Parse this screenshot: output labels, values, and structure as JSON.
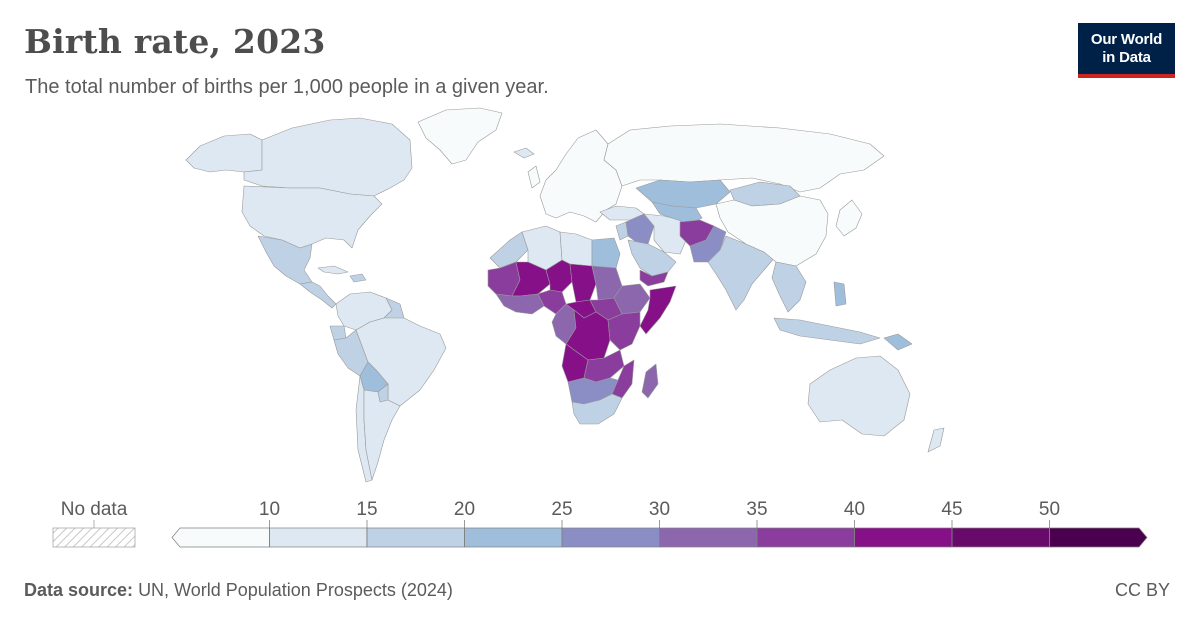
{
  "header": {
    "title": "Birth rate, 2023",
    "subtitle": "The total number of births per 1,000 people in a given year."
  },
  "logo": {
    "line1": "Our World",
    "line2": "in Data"
  },
  "legend": {
    "no_data_label": "No data",
    "ticks": [
      "10",
      "15",
      "20",
      "25",
      "30",
      "35",
      "40",
      "45",
      "50"
    ],
    "bins": [
      {
        "range": "<10",
        "color": "#f7fbfc"
      },
      {
        "range": "10-15",
        "color": "#dde8f2"
      },
      {
        "range": "15-20",
        "color": "#bfd1e5"
      },
      {
        "range": "20-25",
        "color": "#9fbedc"
      },
      {
        "range": "25-30",
        "color": "#8b8ec5"
      },
      {
        "range": "30-35",
        "color": "#8c67ae"
      },
      {
        "range": "35-40",
        "color": "#8a3d9c"
      },
      {
        "range": "40-45",
        "color": "#861088"
      },
      {
        "range": "45-50",
        "color": "#680a6a"
      },
      {
        "range": ">50",
        "color": "#4a004e"
      }
    ]
  },
  "source": {
    "label": "Data source:",
    "text": "UN, World Population Prospects (2024)"
  },
  "license": "CC BY",
  "map_regions": [
    {
      "name": "greenland",
      "color": "#f7fbfc"
    },
    {
      "name": "canada",
      "color": "#dde8f2"
    },
    {
      "name": "alaska",
      "color": "#dde8f2"
    },
    {
      "name": "united-states",
      "color": "#dde8f2"
    },
    {
      "name": "mexico",
      "color": "#bfd1e5"
    },
    {
      "name": "central-america",
      "color": "#bfd1e5"
    },
    {
      "name": "cuba",
      "color": "#dde8f2"
    },
    {
      "name": "caribbean-islands",
      "color": "#bfd1e5"
    },
    {
      "name": "colombia-venezuela",
      "color": "#dde8f2"
    },
    {
      "name": "guianas",
      "color": "#bfd1e5"
    },
    {
      "name": "ecuador",
      "color": "#bfd1e5"
    },
    {
      "name": "peru",
      "color": "#bfd1e5"
    },
    {
      "name": "brazil",
      "color": "#dde8f2"
    },
    {
      "name": "bolivia",
      "color": "#9fbedc"
    },
    {
      "name": "paraguay",
      "color": "#bfd1e5"
    },
    {
      "name": "chile",
      "color": "#dde8f2"
    },
    {
      "name": "argentina",
      "color": "#dde8f2"
    },
    {
      "name": "iceland",
      "color": "#dde8f2"
    },
    {
      "name": "europe",
      "color": "#f7fbfc"
    },
    {
      "name": "uk",
      "color": "#f7fbfc"
    },
    {
      "name": "russia",
      "color": "#f7fbfc"
    },
    {
      "name": "turkey",
      "color": "#dde8f2"
    },
    {
      "name": "middle-east",
      "color": "#bfd1e5"
    },
    {
      "name": "iraq-syria",
      "color": "#8b8ec5"
    },
    {
      "name": "saudi-arabia",
      "color": "#bfd1e5"
    },
    {
      "name": "yemen",
      "color": "#8a3d9c"
    },
    {
      "name": "iran",
      "color": "#dde8f2"
    },
    {
      "name": "kazakhstan",
      "color": "#9fbedc"
    },
    {
      "name": "central-asia",
      "color": "#9fbedc"
    },
    {
      "name": "afghanistan",
      "color": "#8a3d9c"
    },
    {
      "name": "pakistan",
      "color": "#8b8ec5"
    },
    {
      "name": "india",
      "color": "#bfd1e5"
    },
    {
      "name": "mongolia",
      "color": "#bfd1e5"
    },
    {
      "name": "china",
      "color": "#f7fbfc"
    },
    {
      "name": "japan-korea",
      "color": "#f7fbfc"
    },
    {
      "name": "southeast-asia",
      "color": "#bfd1e5"
    },
    {
      "name": "indonesia",
      "color": "#bfd1e5"
    },
    {
      "name": "philippines",
      "color": "#9fbedc"
    },
    {
      "name": "papua-new-guinea",
      "color": "#9fbedc"
    },
    {
      "name": "australia",
      "color": "#dde8f2"
    },
    {
      "name": "new-zealand",
      "color": "#dde8f2"
    },
    {
      "name": "morocco",
      "color": "#bfd1e5"
    },
    {
      "name": "algeria",
      "color": "#dde8f2"
    },
    {
      "name": "libya",
      "color": "#dde8f2"
    },
    {
      "name": "egypt",
      "color": "#9fbedc"
    },
    {
      "name": "west-sahel",
      "color": "#8a3d9c"
    },
    {
      "name": "mali",
      "color": "#861088"
    },
    {
      "name": "niger",
      "color": "#861088"
    },
    {
      "name": "chad",
      "color": "#861088"
    },
    {
      "name": "sudan",
      "color": "#8c67ae"
    },
    {
      "name": "ethiopia",
      "color": "#8c67ae"
    },
    {
      "name": "somalia",
      "color": "#861088"
    },
    {
      "name": "coastal-west-africa",
      "color": "#8c67ae"
    },
    {
      "name": "nigeria",
      "color": "#8a3d9c"
    },
    {
      "name": "central-african-republic",
      "color": "#861088"
    },
    {
      "name": "south-sudan",
      "color": "#8a3d9c"
    },
    {
      "name": "dr-congo",
      "color": "#861088"
    },
    {
      "name": "cameroon-gabon-congo",
      "color": "#8c67ae"
    },
    {
      "name": "east-africa",
      "color": "#8a3d9c"
    },
    {
      "name": "angola",
      "color": "#861088"
    },
    {
      "name": "zambia-malawi",
      "color": "#8a3d9c"
    },
    {
      "name": "mozambique",
      "color": "#8a3d9c"
    },
    {
      "name": "madagascar",
      "color": "#8c67ae"
    },
    {
      "name": "southern-africa",
      "color": "#8b8ec5"
    },
    {
      "name": "south-africa",
      "color": "#bfd1e5"
    }
  ]
}
